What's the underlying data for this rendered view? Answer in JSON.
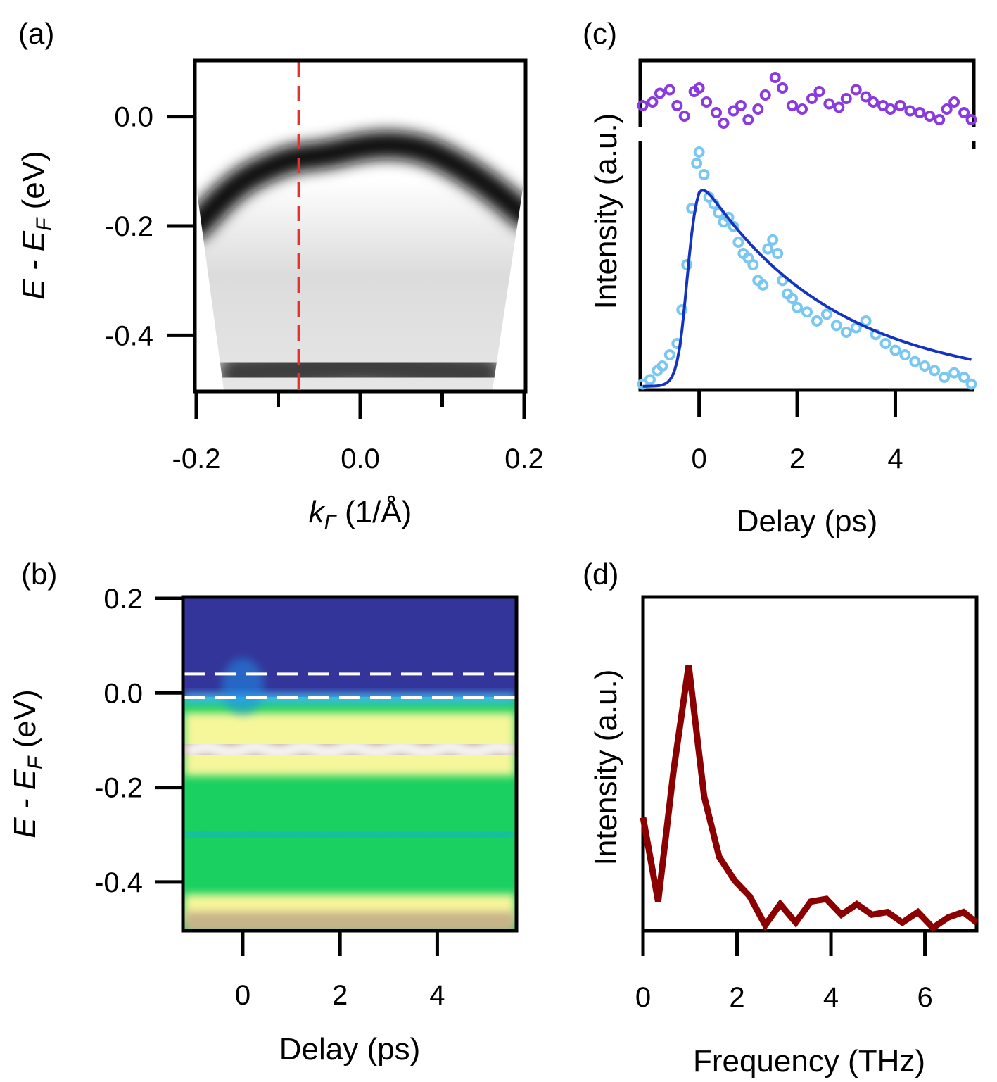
{
  "chart_data": [
    {
      "panel": "(a)",
      "type": "heatmap",
      "description_label": "ARPES band map",
      "xlabel_main": "k",
      "xlabel_sub": "Γ",
      "xlabel_unit": " (1/Å)",
      "ylabel_main": "E - E",
      "ylabel_sub": "F",
      "ylabel_unit": " (eV)",
      "xlim": [
        -0.2,
        0.2
      ],
      "ylim": [
        -0.5,
        0.1
      ],
      "xticks": [
        -0.2,
        0.0,
        0.2
      ],
      "xtick_labels": [
        "-0.2",
        "0.0",
        "0.2"
      ],
      "xminor": [
        -0.1,
        0.1
      ],
      "yticks": [
        0.0,
        -0.2,
        -0.4
      ],
      "ytick_labels": [
        "0.0",
        "-0.2",
        "-0.4"
      ],
      "cut_k": -0.075,
      "cut_color": "#e8302a",
      "bands": [
        {
          "name": "upper band",
          "k": [
            -0.2,
            -0.15,
            -0.1,
            -0.075,
            -0.04,
            0.0,
            0.04,
            0.08,
            0.12,
            0.16,
            0.2
          ],
          "E": [
            -0.2,
            -0.12,
            -0.085,
            -0.075,
            -0.07,
            -0.055,
            -0.05,
            -0.06,
            -0.09,
            -0.13,
            -0.18
          ]
        },
        {
          "name": "lower band",
          "k": [
            -0.15,
            -0.05,
            0.0,
            0.05,
            0.15
          ],
          "E": [
            -0.47,
            -0.46,
            -0.455,
            -0.46,
            -0.47
          ]
        }
      ]
    },
    {
      "panel": "(b)",
      "type": "heatmap",
      "xlabel": "Delay (ps)",
      "ylabel_main": "E - E",
      "ylabel_sub": "F",
      "ylabel_unit": " (eV)",
      "xlim": [
        -1.2,
        5.6
      ],
      "ylim": [
        -0.5,
        0.2
      ],
      "xticks": [
        0,
        2,
        4
      ],
      "xtick_labels": [
        "0",
        "2",
        "4"
      ],
      "yticks": [
        0.2,
        0.0,
        -0.2,
        -0.4
      ],
      "ytick_labels": [
        "0.2",
        "0.0",
        "-0.2",
        "-0.4"
      ],
      "dashed_lines_E": [
        0.04,
        -0.01
      ],
      "band_centers_E": [
        -0.12,
        -0.46
      ],
      "dip_center_E": -0.3,
      "colors": {
        "background": "#34359a",
        "band": "#8a5a4e",
        "peak": "#f4f2f0",
        "mid": "#19d060",
        "edge": "#f6f69a",
        "dip": "#18b8b8",
        "line": "#ffffff"
      }
    },
    {
      "panel": "(c)",
      "type": "scatter",
      "xlabel": "Delay (ps)",
      "ylabel": "Intensity (a.u.)",
      "xlim": [
        -1.2,
        5.6
      ],
      "xticks": [
        0,
        2,
        4
      ],
      "xtick_labels": [
        "0",
        "2",
        "4"
      ],
      "series": [
        {
          "name": "oscillation residual",
          "color": "#8a3be0",
          "x": [
            -1.15,
            -0.95,
            -0.8,
            -0.6,
            -0.45,
            -0.3,
            -0.1,
            0.0,
            0.15,
            0.35,
            0.5,
            0.7,
            0.85,
            1.0,
            1.2,
            1.35,
            1.55,
            1.7,
            1.9,
            2.1,
            2.3,
            2.45,
            2.65,
            2.85,
            3.0,
            3.2,
            3.4,
            3.55,
            3.75,
            3.9,
            4.1,
            4.3,
            4.5,
            4.7,
            4.9,
            5.05,
            5.2,
            5.4,
            5.55
          ],
          "y": [
            0.1,
            0.2,
            0.45,
            0.55,
            0.1,
            -0.2,
            0.5,
            0.6,
            0.2,
            -0.1,
            -0.4,
            -0.05,
            0.1,
            -0.3,
            0.0,
            0.4,
            0.9,
            0.6,
            0.1,
            0.0,
            0.3,
            0.5,
            0.15,
            0.05,
            0.3,
            0.55,
            0.35,
            0.2,
            0.1,
            0.0,
            0.1,
            -0.05,
            -0.1,
            -0.2,
            -0.3,
            0.0,
            0.2,
            -0.1,
            -0.3
          ]
        },
        {
          "name": "measured intensity",
          "color": "#7ac7f2",
          "x": [
            -1.15,
            -1.0,
            -0.85,
            -0.75,
            -0.6,
            -0.45,
            -0.35,
            -0.25,
            -0.15,
            -0.05,
            0.0,
            0.1,
            0.2,
            0.3,
            0.4,
            0.5,
            0.6,
            0.7,
            0.8,
            0.9,
            1.0,
            1.1,
            1.2,
            1.3,
            1.4,
            1.5,
            1.6,
            1.7,
            1.8,
            1.9,
            2.0,
            2.2,
            2.4,
            2.6,
            2.8,
            3.0,
            3.2,
            3.4,
            3.6,
            3.8,
            4.0,
            4.2,
            4.4,
            4.6,
            4.8,
            5.0,
            5.2,
            5.4,
            5.55
          ],
          "y": [
            0.02,
            0.04,
            0.08,
            0.1,
            0.15,
            0.2,
            0.35,
            0.55,
            0.8,
            1.0,
            1.05,
            0.95,
            0.85,
            0.82,
            0.78,
            0.74,
            0.76,
            0.72,
            0.65,
            0.6,
            0.58,
            0.55,
            0.48,
            0.46,
            0.62,
            0.66,
            0.6,
            0.48,
            0.42,
            0.4,
            0.36,
            0.34,
            0.3,
            0.33,
            0.28,
            0.25,
            0.27,
            0.3,
            0.24,
            0.2,
            0.17,
            0.15,
            0.12,
            0.1,
            0.08,
            0.05,
            0.07,
            0.05,
            0.02
          ]
        },
        {
          "name": "fit",
          "type": "line",
          "color": "#1433bf",
          "rise": 0.1,
          "t0": 0.0,
          "tau": 2.7
        }
      ]
    },
    {
      "panel": "(d)",
      "type": "line",
      "xlabel": "Frequency (THz)",
      "ylabel": "Intensity (a.u.)",
      "xlim": [
        0,
        7.1
      ],
      "ylim": [
        0,
        1.05
      ],
      "xticks": [
        0,
        2,
        4,
        6
      ],
      "xtick_labels": [
        "0",
        "2",
        "4",
        "6"
      ],
      "series": [
        {
          "name": "FFT",
          "color": "#8b0000",
          "x": [
            0.0,
            0.32,
            0.65,
            0.97,
            1.3,
            1.62,
            1.95,
            2.27,
            2.6,
            2.92,
            3.25,
            3.57,
            3.9,
            4.22,
            4.55,
            4.87,
            5.2,
            5.52,
            5.85,
            6.17,
            6.5,
            6.82,
            7.1
          ],
          "y": [
            0.42,
            0.1,
            0.6,
            1.0,
            0.5,
            0.27,
            0.18,
            0.12,
            0.01,
            0.09,
            0.02,
            0.1,
            0.11,
            0.05,
            0.09,
            0.05,
            0.06,
            0.02,
            0.06,
            0.0,
            0.04,
            0.06,
            0.02
          ]
        }
      ]
    }
  ]
}
